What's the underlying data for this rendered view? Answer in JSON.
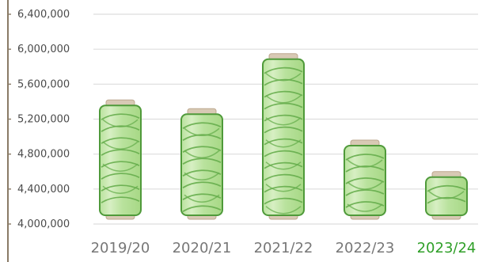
{
  "chart_data": {
    "type": "bar",
    "title": "",
    "xlabel": "",
    "ylabel": "",
    "categories": [
      "2019/20",
      "2020/21",
      "2021/22",
      "2022/23",
      "2023/24"
    ],
    "values": [
      5420000,
      5320000,
      5950000,
      4960000,
      4600000
    ],
    "ylim": [
      4000000,
      6400000
    ],
    "y_ticks": [
      4000000,
      4400000,
      4800000,
      5200000,
      5600000,
      6000000,
      6400000
    ],
    "y_tick_labels": [
      "4,000,000",
      "4,400,000",
      "4,800,000",
      "5,200,000",
      "5,600,000",
      "6,000,000",
      "6,400,000"
    ],
    "highlight_category": "2023/24",
    "grid": true,
    "legend": "none"
  },
  "colors": {
    "bar_fill": "#b9e29d",
    "bar_fill_light": "#d7efc3",
    "bar_stroke": "#4f9a3a",
    "thread_line": "#66ad4c",
    "spool_cap": "#d8c9b4",
    "spool_cap_shadow": "#bda88f",
    "grid": "#dddddd",
    "axis": "#8a7b66",
    "tick_text": "#4a4a4a",
    "category_text": "#777777",
    "highlight_text": "#2f9f28"
  }
}
